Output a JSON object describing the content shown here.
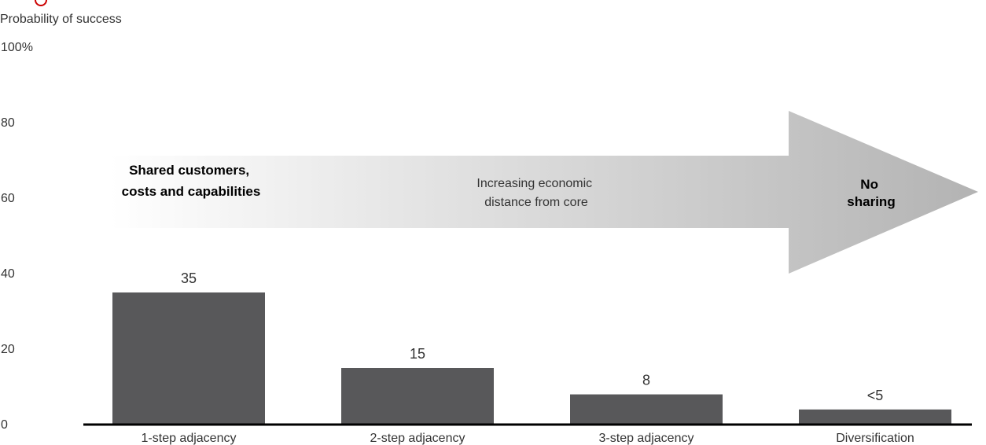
{
  "chart_data": {
    "type": "bar",
    "ylabel": "Probability of success",
    "ylim": [
      0,
      100
    ],
    "yticks": [
      "100%",
      "80",
      "60",
      "40",
      "20",
      "0"
    ],
    "ytick_values": [
      100,
      80,
      60,
      40,
      20,
      0
    ],
    "categories": [
      "1-step adjacency",
      "2-step adjacency",
      "3-step adjacency",
      "Diversification"
    ],
    "values": [
      35,
      15,
      8,
      4
    ],
    "value_labels": [
      "35",
      "15",
      "8",
      "<5"
    ],
    "grid": false,
    "bar_color": "#58585a"
  },
  "annotation": {
    "left_line1": "Shared customers,",
    "left_line2": "costs and capabilities",
    "middle_line1": "Increasing economic",
    "middle_line2": "distance from core",
    "right_line1": "No",
    "right_line2": "sharing"
  },
  "colors": {
    "axis": "#000000",
    "logo_accent": "#cc0000",
    "arrow_start": "#ffffff",
    "arrow_end": "#b3b3b3",
    "text": "#333333"
  }
}
